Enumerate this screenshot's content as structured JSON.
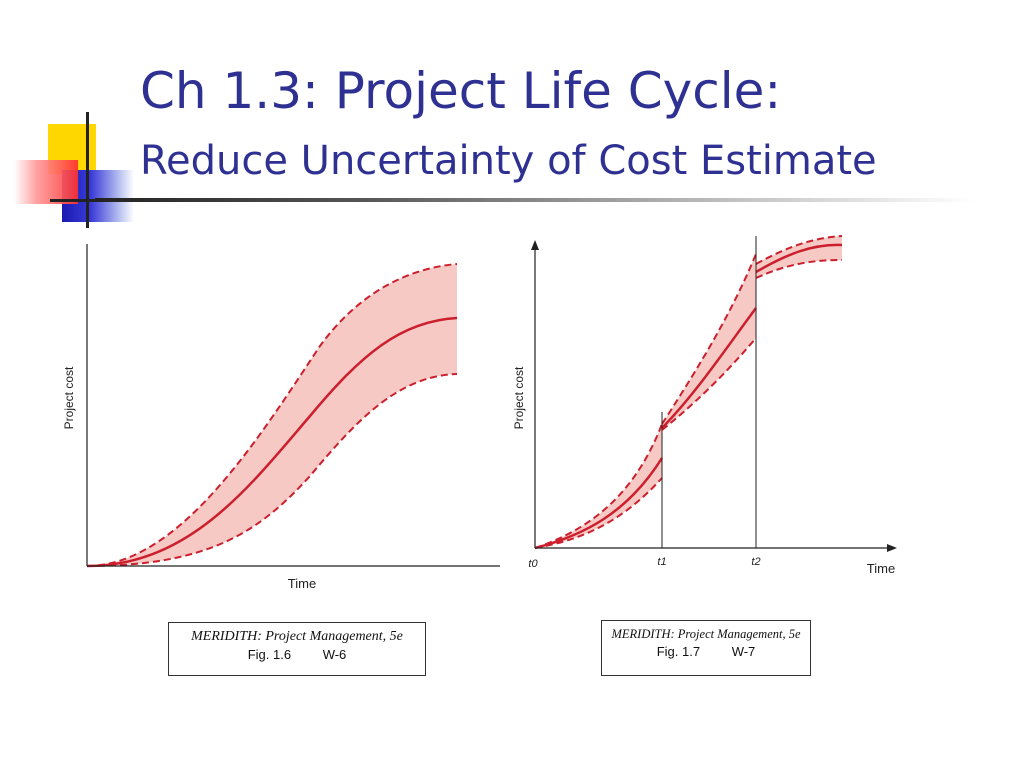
{
  "slide": {
    "title": "Ch 1.3: Project Life Cycle:",
    "subtitle": "Reduce Uncertainty of Cost Estimate"
  },
  "left_chart": {
    "ylabel": "Project cost",
    "xlabel": "Time",
    "caption": {
      "source": "MERIDITH: Project Management, 5e",
      "figure": "Fig. 1.6",
      "code": "W-6"
    }
  },
  "right_chart": {
    "ylabel": "Project cost",
    "xlabel": "Time",
    "ticks": [
      "t0",
      "t1",
      "t2"
    ],
    "caption": {
      "source": "MERIDITH: Project Management, 5e",
      "figure": "Fig. 1.7",
      "code": "W-7"
    }
  },
  "colors": {
    "title": "#2e3192",
    "curve": "#cc1f2e",
    "band": "#f7c9c4"
  }
}
